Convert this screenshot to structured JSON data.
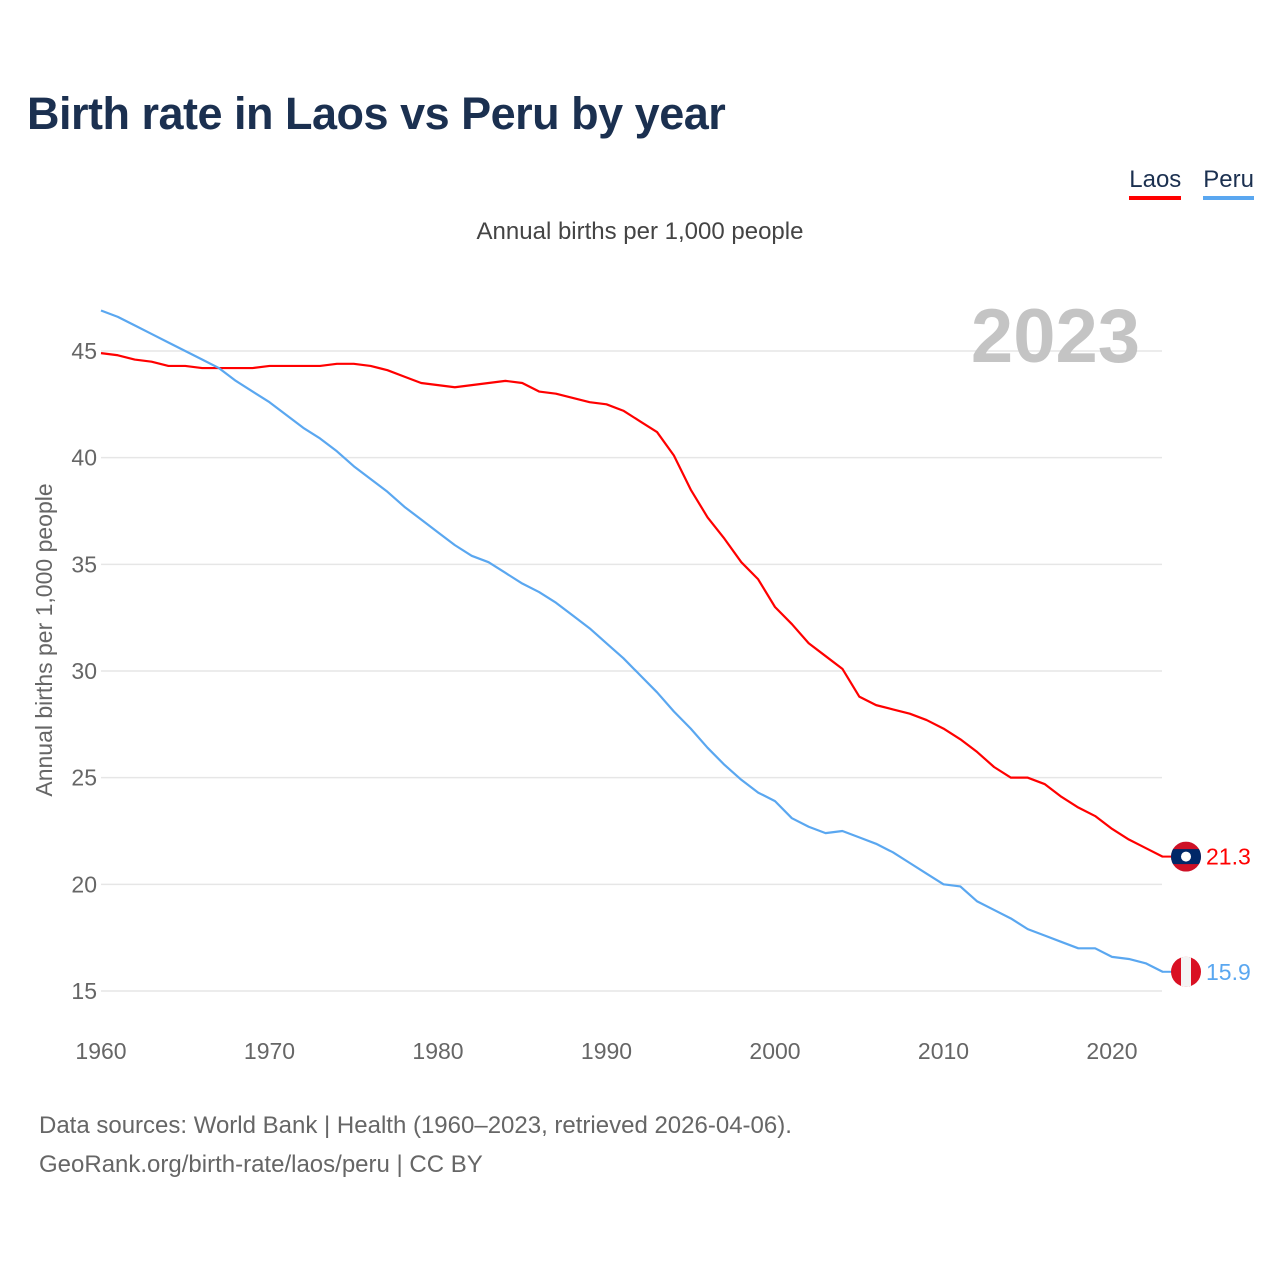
{
  "title": "Birth rate in Laos vs Peru by year",
  "source_line1": "Data sources: World Bank | Health (1960–2023, retrieved 2026-04-06).",
  "source_line2": "GeoRank.org/birth-rate/laos/peru | CC BY",
  "chart_data": {
    "type": "line",
    "title": "Birth rate in Laos vs Peru by year",
    "subtitle": "Annual births per 1,000 people",
    "ylabel": "Annual births per 1,000 people",
    "xlabel": "",
    "year_label": "2023",
    "xlim": [
      1960,
      2023
    ],
    "ylim": [
      14,
      47.5
    ],
    "xticks": [
      "1960",
      "1970",
      "1980",
      "1990",
      "2000",
      "2010",
      "2020"
    ],
    "yticks": [
      "15",
      "20",
      "25",
      "30",
      "35",
      "40",
      "45"
    ],
    "grid": true,
    "legend_position": "top-right",
    "x": [
      1960,
      1961,
      1962,
      1963,
      1964,
      1965,
      1966,
      1967,
      1968,
      1969,
      1970,
      1971,
      1972,
      1973,
      1974,
      1975,
      1976,
      1977,
      1978,
      1979,
      1980,
      1981,
      1982,
      1983,
      1984,
      1985,
      1986,
      1987,
      1988,
      1989,
      1990,
      1991,
      1992,
      1993,
      1994,
      1995,
      1996,
      1997,
      1998,
      1999,
      2000,
      2001,
      2002,
      2003,
      2004,
      2005,
      2006,
      2007,
      2008,
      2009,
      2010,
      2011,
      2012,
      2013,
      2014,
      2015,
      2016,
      2017,
      2018,
      2019,
      2020,
      2021,
      2022,
      2023
    ],
    "series": [
      {
        "name": "Laos",
        "color": "#ff0000",
        "end_label": "21.3",
        "values": [
          44.9,
          44.8,
          44.6,
          44.5,
          44.3,
          44.3,
          44.2,
          44.2,
          44.2,
          44.2,
          44.3,
          44.3,
          44.3,
          44.3,
          44.4,
          44.4,
          44.3,
          44.1,
          43.8,
          43.5,
          43.4,
          43.3,
          43.4,
          43.5,
          43.6,
          43.5,
          43.1,
          43.0,
          42.8,
          42.6,
          42.5,
          42.2,
          41.7,
          41.2,
          40.1,
          38.5,
          37.2,
          36.2,
          35.1,
          34.3,
          33.0,
          32.2,
          31.3,
          30.7,
          30.1,
          28.8,
          28.4,
          28.2,
          28.0,
          27.7,
          27.3,
          26.8,
          26.2,
          25.5,
          25.0,
          25.0,
          24.7,
          24.1,
          23.6,
          23.2,
          22.6,
          22.1,
          21.7,
          21.3
        ]
      },
      {
        "name": "Peru",
        "color": "#5aa7f0",
        "end_label": "15.9",
        "values": [
          46.9,
          46.6,
          46.2,
          45.8,
          45.4,
          45.0,
          44.6,
          44.2,
          43.6,
          43.1,
          42.6,
          42.0,
          41.4,
          40.9,
          40.3,
          39.6,
          39.0,
          38.4,
          37.7,
          37.1,
          36.5,
          35.9,
          35.4,
          35.1,
          34.6,
          34.1,
          33.7,
          33.2,
          32.6,
          32.0,
          31.3,
          30.6,
          29.8,
          29.0,
          28.1,
          27.3,
          26.4,
          25.6,
          24.9,
          24.3,
          23.9,
          23.1,
          22.7,
          22.4,
          22.5,
          22.2,
          21.9,
          21.5,
          21.0,
          20.5,
          20.0,
          19.9,
          19.2,
          18.8,
          18.4,
          17.9,
          17.6,
          17.3,
          17.0,
          17.0,
          16.6,
          16.5,
          16.3,
          15.9
        ]
      }
    ]
  }
}
